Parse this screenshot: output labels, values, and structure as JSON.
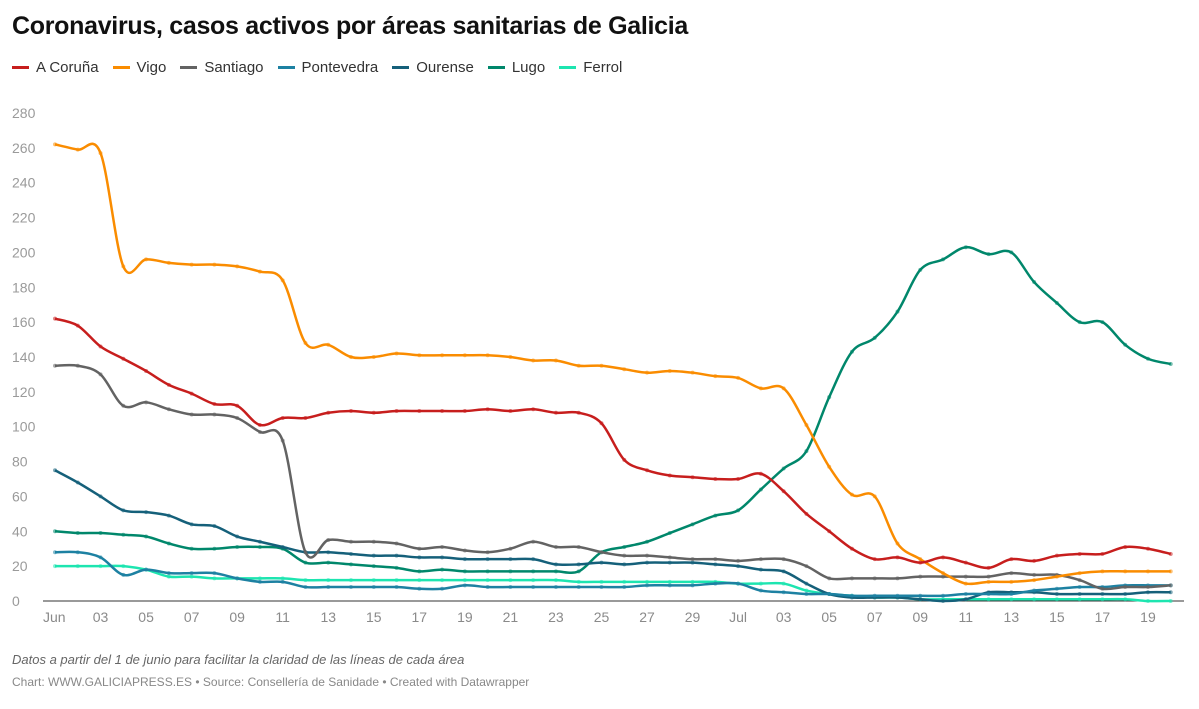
{
  "chart_data": {
    "type": "line",
    "title": "Coronavirus, casos activos por áreas sanitarias de Galicia",
    "xlabel": "",
    "ylabel": "",
    "ylim": [
      0,
      280
    ],
    "y_ticks": [
      0,
      20,
      40,
      60,
      80,
      100,
      120,
      140,
      160,
      180,
      200,
      220,
      240,
      260,
      280
    ],
    "x_start": "Jun 01",
    "x_end": "Jul 20",
    "x_tick_labels": [
      "Jun",
      "03",
      "05",
      "07",
      "09",
      "11",
      "13",
      "15",
      "17",
      "19",
      "21",
      "23",
      "25",
      "27",
      "29",
      "Jul",
      "03",
      "05",
      "07",
      "09",
      "11",
      "13",
      "15",
      "17",
      "19"
    ],
    "grid": false,
    "legend_position": "top-left",
    "series": [
      {
        "name": "A Coruña",
        "color": "#c71e1d",
        "values": [
          162,
          158,
          146,
          139,
          132,
          124,
          119,
          113,
          112,
          101,
          105,
          105,
          108,
          109,
          108,
          109,
          109,
          109,
          109,
          110,
          109,
          110,
          108,
          108,
          102,
          81,
          75,
          72,
          71,
          70,
          70,
          73,
          63,
          50,
          40,
          30,
          24,
          25,
          22,
          25,
          22,
          19,
          24,
          23,
          26,
          27,
          27,
          31,
          30,
          27
        ]
      },
      {
        "name": "Vigo",
        "color": "#fa8c00",
        "values": [
          262,
          259,
          257,
          192,
          196,
          194,
          193,
          193,
          192,
          189,
          184,
          148,
          147,
          140,
          140,
          142,
          141,
          141,
          141,
          141,
          140,
          138,
          138,
          135,
          135,
          133,
          131,
          132,
          131,
          129,
          128,
          122,
          122,
          101,
          77,
          61,
          60,
          33,
          24,
          16,
          10,
          11,
          11,
          12,
          14,
          16,
          17,
          17,
          17,
          17
        ]
      },
      {
        "name": "Santiago",
        "color": "#636363",
        "values": [
          135,
          135,
          130,
          112,
          114,
          110,
          107,
          107,
          105,
          97,
          92,
          28,
          35,
          34,
          34,
          33,
          30,
          31,
          29,
          28,
          30,
          34,
          31,
          31,
          28,
          26,
          26,
          25,
          24,
          24,
          23,
          24,
          24,
          20,
          13,
          13,
          13,
          13,
          14,
          14,
          14,
          14,
          16,
          15,
          15,
          12,
          7,
          8,
          8,
          9
        ]
      },
      {
        "name": "Pontevedra",
        "color": "#1d81a2",
        "values": [
          28,
          28,
          25,
          15,
          18,
          16,
          16,
          16,
          13,
          11,
          11,
          8,
          8,
          8,
          8,
          8,
          7,
          7,
          9,
          8,
          8,
          8,
          8,
          8,
          8,
          8,
          9,
          9,
          9,
          10,
          10,
          6,
          5,
          4,
          4,
          3,
          3,
          3,
          3,
          3,
          4,
          4,
          4,
          6,
          7,
          8,
          8,
          9,
          9,
          9
        ]
      },
      {
        "name": "Ourense",
        "color": "#15607a",
        "values": [
          75,
          68,
          60,
          52,
          51,
          49,
          44,
          43,
          37,
          34,
          31,
          28,
          28,
          27,
          26,
          26,
          25,
          25,
          24,
          24,
          24,
          24,
          21,
          21,
          22,
          21,
          22,
          22,
          22,
          21,
          20,
          18,
          17,
          10,
          4,
          2,
          2,
          2,
          1,
          0,
          1,
          5,
          5,
          5,
          4,
          4,
          4,
          4,
          5,
          5
        ]
      },
      {
        "name": "Lugo",
        "color": "#00876b",
        "values": [
          40,
          39,
          39,
          38,
          37,
          33,
          30,
          30,
          31,
          31,
          30,
          22,
          22,
          21,
          20,
          19,
          17,
          18,
          17,
          17,
          17,
          17,
          17,
          17,
          28,
          31,
          34,
          39,
          44,
          49,
          52,
          64,
          76,
          86,
          117,
          143,
          151,
          166,
          190,
          196,
          203,
          199,
          200,
          183,
          171,
          160,
          160,
          147,
          139,
          136
        ]
      },
      {
        "name": "Ferrol",
        "color": "#1de5b0",
        "values": [
          20,
          20,
          20,
          20,
          18,
          14,
          14,
          13,
          13,
          13,
          13,
          12,
          12,
          12,
          12,
          12,
          12,
          12,
          12,
          12,
          12,
          12,
          12,
          11,
          11,
          11,
          11,
          11,
          11,
          11,
          10,
          10,
          10,
          6,
          4,
          3,
          2,
          2,
          1,
          1,
          1,
          1,
          1,
          1,
          1,
          1,
          1,
          1,
          0,
          0
        ]
      }
    ]
  },
  "footer": {
    "note": "Datos a partir del 1 de junio para facilitar la claridad de las líneas de cada área",
    "credit": "Chart: WWW.GALICIAPRESS.ES • Source: Consellería de Sanidade • Created with Datawrapper"
  }
}
